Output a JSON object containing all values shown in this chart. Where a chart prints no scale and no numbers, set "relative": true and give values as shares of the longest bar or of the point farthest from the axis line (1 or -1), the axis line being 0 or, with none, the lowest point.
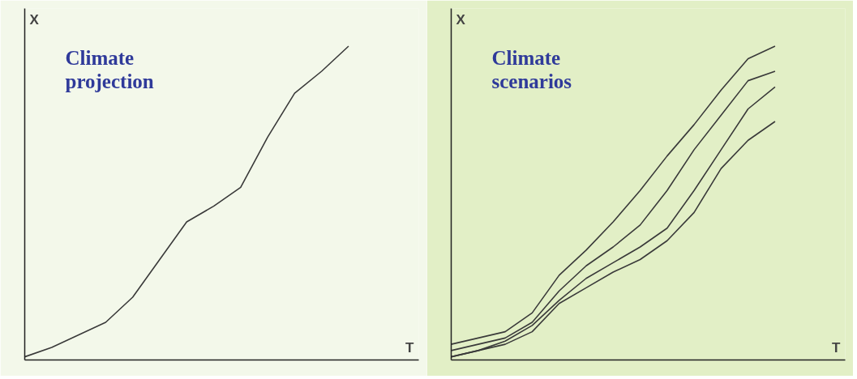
{
  "chart_data": [
    {
      "type": "line",
      "relative": true,
      "title": "Climate projection",
      "xlabel": "T",
      "ylabel": "X",
      "categories": [
        null,
        null,
        null,
        null,
        null,
        null,
        null,
        null,
        null,
        null,
        null,
        null,
        null,
        null,
        null
      ],
      "series": [
        {
          "color": "#3a3a3a",
          "values": [
            0.01,
            0.04,
            0.08,
            0.12,
            0.2,
            0.32,
            0.44,
            0.49,
            0.55,
            0.71,
            0.85,
            0.92,
            1,
            null,
            null
          ]
        }
      ]
    },
    {
      "type": "line",
      "relative": true,
      "title": "Climate scenarios",
      "xlabel": "T",
      "ylabel": "X",
      "categories": [
        null,
        null,
        null,
        null,
        null,
        null,
        null,
        null,
        null,
        null,
        null,
        null,
        null,
        null,
        null
      ],
      "series": [
        {
          "color": "#3a3a3a",
          "values": [
            0.05,
            0.07,
            0.09,
            0.15,
            0.27,
            0.35,
            0.44,
            0.54,
            0.65,
            0.75,
            0.86,
            0.96,
            1,
            null,
            null
          ]
        },
        {
          "color": "#3a3a3a",
          "values": [
            0.03,
            0.05,
            0.07,
            0.12,
            0.22,
            0.3,
            0.36,
            0.43,
            0.54,
            0.67,
            0.78,
            0.89,
            0.92,
            null,
            null
          ]
        },
        {
          "color": "#3a3a3a",
          "values": [
            0.01,
            0.03,
            0.06,
            0.11,
            0.19,
            0.26,
            0.31,
            0.36,
            0.42,
            0.54,
            0.67,
            0.8,
            0.87,
            null,
            null
          ]
        },
        {
          "color": "#3a3a3a",
          "values": [
            0.01,
            0.03,
            0.05,
            0.09,
            0.18,
            0.23,
            0.28,
            0.32,
            0.38,
            0.47,
            0.61,
            0.7,
            0.76,
            null,
            null
          ]
        }
      ]
    }
  ]
}
